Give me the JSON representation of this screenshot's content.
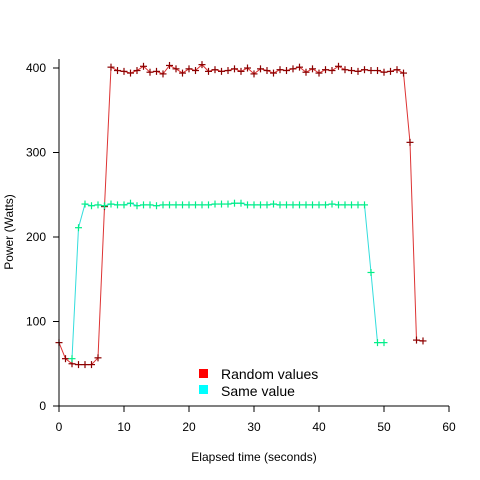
{
  "chart_data": {
    "type": "line",
    "title": "",
    "xlabel": "Elapsed time (seconds)",
    "ylabel": "Power (Watts)",
    "xlim": [
      0,
      60
    ],
    "ylim": [
      0,
      410
    ],
    "xticks": [
      0,
      10,
      20,
      30,
      40,
      50,
      60
    ],
    "yticks": [
      0,
      100,
      200,
      300,
      400
    ],
    "grid": false,
    "legend_position": "bottom-center",
    "series": [
      {
        "name": "Random values",
        "line_color": "#dd3333",
        "marker_color": "#8b0000",
        "legend_color": "#ff0000",
        "points": [
          [
            0,
            75
          ],
          [
            1,
            56
          ],
          [
            2,
            50
          ],
          [
            3,
            49
          ],
          [
            4,
            49
          ],
          [
            5,
            49
          ],
          [
            6,
            57
          ],
          [
            7,
            236
          ],
          [
            8,
            401
          ],
          [
            9,
            397
          ],
          [
            10,
            396
          ],
          [
            11,
            394
          ],
          [
            12,
            397
          ],
          [
            13,
            402
          ],
          [
            14,
            395
          ],
          [
            15,
            396
          ],
          [
            16,
            393
          ],
          [
            17,
            403
          ],
          [
            18,
            399
          ],
          [
            19,
            394
          ],
          [
            20,
            399
          ],
          [
            21,
            397
          ],
          [
            22,
            404
          ],
          [
            23,
            396
          ],
          [
            24,
            398
          ],
          [
            25,
            396
          ],
          [
            26,
            397
          ],
          [
            27,
            399
          ],
          [
            28,
            396
          ],
          [
            29,
            400
          ],
          [
            30,
            393
          ],
          [
            31,
            399
          ],
          [
            32,
            397
          ],
          [
            33,
            394
          ],
          [
            34,
            398
          ],
          [
            35,
            397
          ],
          [
            36,
            399
          ],
          [
            37,
            401
          ],
          [
            38,
            395
          ],
          [
            39,
            399
          ],
          [
            40,
            394
          ],
          [
            41,
            398
          ],
          [
            42,
            397
          ],
          [
            43,
            402
          ],
          [
            44,
            398
          ],
          [
            45,
            397
          ],
          [
            46,
            396
          ],
          [
            47,
            398
          ],
          [
            48,
            397
          ],
          [
            49,
            397
          ],
          [
            50,
            395
          ],
          [
            51,
            396
          ],
          [
            52,
            398
          ],
          [
            53,
            394
          ],
          [
            54,
            312
          ],
          [
            55,
            78
          ],
          [
            56,
            77
          ]
        ]
      },
      {
        "name": "Same value",
        "line_color": "#33dddd",
        "marker_color": "#00ee88",
        "legend_color": "#00ffff",
        "points": [
          [
            2,
            56
          ],
          [
            3,
            211
          ],
          [
            4,
            239
          ],
          [
            5,
            237
          ],
          [
            6,
            238
          ],
          [
            7,
            237
          ],
          [
            8,
            239
          ],
          [
            9,
            238
          ],
          [
            10,
            238
          ],
          [
            11,
            240
          ],
          [
            12,
            237
          ],
          [
            13,
            238
          ],
          [
            14,
            238
          ],
          [
            15,
            237
          ],
          [
            16,
            238
          ],
          [
            17,
            238
          ],
          [
            18,
            238
          ],
          [
            19,
            238
          ],
          [
            20,
            238
          ],
          [
            21,
            238
          ],
          [
            22,
            238
          ],
          [
            23,
            238
          ],
          [
            24,
            239
          ],
          [
            25,
            239
          ],
          [
            26,
            239
          ],
          [
            27,
            240
          ],
          [
            28,
            240
          ],
          [
            29,
            238
          ],
          [
            30,
            238
          ],
          [
            31,
            238
          ],
          [
            32,
            238
          ],
          [
            33,
            239
          ],
          [
            34,
            238
          ],
          [
            35,
            238
          ],
          [
            36,
            238
          ],
          [
            37,
            238
          ],
          [
            38,
            238
          ],
          [
            39,
            238
          ],
          [
            40,
            238
          ],
          [
            41,
            238
          ],
          [
            42,
            239
          ],
          [
            43,
            238
          ],
          [
            44,
            238
          ],
          [
            45,
            238
          ],
          [
            46,
            238
          ],
          [
            47,
            238
          ],
          [
            48,
            158
          ],
          [
            49,
            75
          ],
          [
            50,
            75
          ]
        ]
      }
    ]
  }
}
